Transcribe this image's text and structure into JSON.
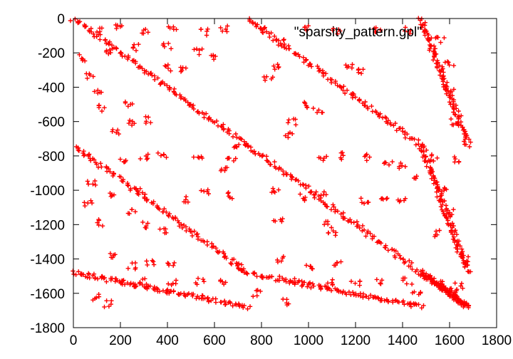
{
  "chart_data": {
    "type": "scatter",
    "title": "",
    "xlabel": "",
    "ylabel": "",
    "xlim": [
      0,
      1800
    ],
    "ylim": [
      -1800,
      0
    ],
    "grid": false,
    "legend_position": "top-right",
    "x_ticks": [
      "0",
      "200",
      "400",
      "600",
      "800",
      "1000",
      "1200",
      "1400",
      "1600",
      "1800"
    ],
    "y_ticks": [
      "0",
      "-200",
      "-400",
      "-600",
      "-800",
      "-1000",
      "-1200",
      "-1400",
      "-1600",
      "-1800"
    ],
    "x_tick_values": [
      0,
      200,
      400,
      600,
      800,
      1000,
      1200,
      1400,
      1600,
      1800
    ],
    "y_tick_values": [
      0,
      -200,
      -400,
      -600,
      -800,
      -1000,
      -1200,
      -1400,
      -1600,
      -1800
    ],
    "series": [
      {
        "name": "\"sparsity_pattern.gpl\"",
        "marker": "+",
        "color": "#ff0000",
        "diagonal_bands": [
          {
            "x": [
              0,
              740
            ],
            "y": [
              0,
              -740
            ]
          },
          {
            "x": [
              740,
              1480
            ],
            "y": [
              0,
              -740
            ]
          },
          {
            "x": [
              0,
              740
            ],
            "y": [
              -740,
              -1480
            ]
          },
          {
            "x": [
              740,
              1480
            ],
            "y": [
              -740,
              -1480
            ]
          },
          {
            "x": [
              1480,
              1680
            ],
            "y": [
              0,
              -740
            ]
          },
          {
            "x": [
              1480,
              1680
            ],
            "y": [
              -740,
              -1480
            ]
          },
          {
            "x": [
              0,
              740
            ],
            "y": [
              -1480,
              -1680
            ]
          },
          {
            "x": [
              740,
              1480
            ],
            "y": [
              -1480,
              -1680
            ]
          },
          {
            "x": [
              1480,
              1680
            ],
            "y": [
              -1480,
              -1680
            ]
          }
        ],
        "clusters": [
          {
            "x": 110,
            "y": -75
          },
          {
            "x": 200,
            "y": -55
          },
          {
            "x": 300,
            "y": -70
          },
          {
            "x": 420,
            "y": -65
          },
          {
            "x": 560,
            "y": -80
          },
          {
            "x": 640,
            "y": -60
          },
          {
            "x": 40,
            "y": -230
          },
          {
            "x": 75,
            "y": -330
          },
          {
            "x": 100,
            "y": -420
          },
          {
            "x": 140,
            "y": -200
          },
          {
            "x": 270,
            "y": -170
          },
          {
            "x": 400,
            "y": -160
          },
          {
            "x": 530,
            "y": -190
          },
          {
            "x": 600,
            "y": -230
          },
          {
            "x": 410,
            "y": -285
          },
          {
            "x": 470,
            "y": -300
          },
          {
            "x": 240,
            "y": -500
          },
          {
            "x": 120,
            "y": -520
          },
          {
            "x": 175,
            "y": -660
          },
          {
            "x": 250,
            "y": -610
          },
          {
            "x": 315,
            "y": -590
          },
          {
            "x": 205,
            "y": -820
          },
          {
            "x": 300,
            "y": -810
          },
          {
            "x": 380,
            "y": -800
          },
          {
            "x": 530,
            "y": -810
          },
          {
            "x": 640,
            "y": -880
          },
          {
            "x": 670,
            "y": -830
          },
          {
            "x": 700,
            "y": -740
          },
          {
            "x": 810,
            "y": -50
          },
          {
            "x": 880,
            "y": -140
          },
          {
            "x": 870,
            "y": -280
          },
          {
            "x": 830,
            "y": -350
          },
          {
            "x": 1000,
            "y": -60
          },
          {
            "x": 1120,
            "y": -70
          },
          {
            "x": 1300,
            "y": -60
          },
          {
            "x": 1420,
            "y": -70
          },
          {
            "x": 1170,
            "y": -280
          },
          {
            "x": 1230,
            "y": -300
          },
          {
            "x": 990,
            "y": -500
          },
          {
            "x": 1040,
            "y": -540
          },
          {
            "x": 930,
            "y": -600
          },
          {
            "x": 920,
            "y": -680
          },
          {
            "x": 1060,
            "y": -810
          },
          {
            "x": 1150,
            "y": -800
          },
          {
            "x": 1250,
            "y": -810
          },
          {
            "x": 1340,
            "y": -840
          },
          {
            "x": 1400,
            "y": -860
          },
          {
            "x": 1450,
            "y": -920
          },
          {
            "x": 1560,
            "y": -120
          },
          {
            "x": 1600,
            "y": -260
          },
          {
            "x": 1600,
            "y": -430
          },
          {
            "x": 1620,
            "y": -600
          },
          {
            "x": 1640,
            "y": -820
          },
          {
            "x": 1540,
            "y": -810
          },
          {
            "x": 1570,
            "y": -980
          },
          {
            "x": 1600,
            "y": -1130
          },
          {
            "x": 1540,
            "y": -1250
          },
          {
            "x": 1610,
            "y": -1590
          },
          {
            "x": 1660,
            "y": -1400
          },
          {
            "x": 80,
            "y": -950
          },
          {
            "x": 60,
            "y": -1080
          },
          {
            "x": 120,
            "y": -1190
          },
          {
            "x": 160,
            "y": -1030
          },
          {
            "x": 280,
            "y": -1000
          },
          {
            "x": 250,
            "y": -1120
          },
          {
            "x": 300,
            "y": -1200
          },
          {
            "x": 380,
            "y": -1230
          },
          {
            "x": 470,
            "y": -1050
          },
          {
            "x": 560,
            "y": -1010
          },
          {
            "x": 660,
            "y": -1030
          },
          {
            "x": 160,
            "y": -1380
          },
          {
            "x": 250,
            "y": -1440
          },
          {
            "x": 330,
            "y": -1420
          },
          {
            "x": 420,
            "y": -1440
          },
          {
            "x": 200,
            "y": -1530
          },
          {
            "x": 300,
            "y": -1530
          },
          {
            "x": 420,
            "y": -1540
          },
          {
            "x": 540,
            "y": -1530
          },
          {
            "x": 640,
            "y": -1540
          },
          {
            "x": 700,
            "y": -1450
          },
          {
            "x": 860,
            "y": -1000
          },
          {
            "x": 870,
            "y": -1180
          },
          {
            "x": 980,
            "y": -1040
          },
          {
            "x": 1060,
            "y": -1020
          },
          {
            "x": 1080,
            "y": -1200
          },
          {
            "x": 1100,
            "y": -1250
          },
          {
            "x": 1240,
            "y": -1060
          },
          {
            "x": 1320,
            "y": -1040
          },
          {
            "x": 1400,
            "y": -1060
          },
          {
            "x": 880,
            "y": -1400
          },
          {
            "x": 1000,
            "y": -1440
          },
          {
            "x": 1120,
            "y": -1420
          },
          {
            "x": 960,
            "y": -1530
          },
          {
            "x": 1100,
            "y": -1540
          },
          {
            "x": 1200,
            "y": -1540
          },
          {
            "x": 1300,
            "y": -1530
          },
          {
            "x": 1420,
            "y": -1530
          },
          {
            "x": 1460,
            "y": -1600
          },
          {
            "x": 100,
            "y": -1620
          },
          {
            "x": 150,
            "y": -1660
          },
          {
            "x": 780,
            "y": -1600
          },
          {
            "x": 900,
            "y": -1650
          },
          {
            "x": 1550,
            "y": -1540
          },
          {
            "x": 1600,
            "y": -1580
          },
          {
            "x": 1640,
            "y": -1560
          }
        ]
      }
    ]
  }
}
